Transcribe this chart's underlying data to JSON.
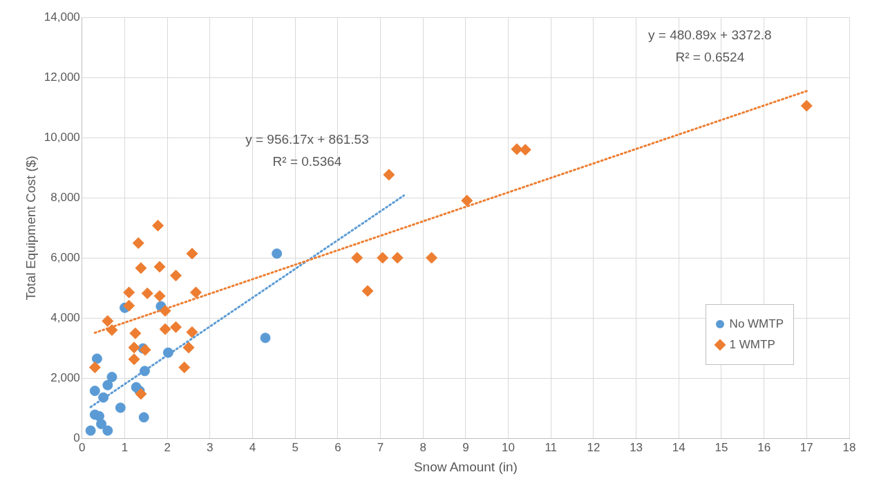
{
  "chart_data": {
    "type": "scatter",
    "xlabel": "Snow Amount (in)",
    "ylabel": "Total Equipment Cost ($)",
    "xlim": [
      0,
      18
    ],
    "xticks": [
      0,
      1,
      2,
      3,
      4,
      5,
      6,
      7,
      8,
      9,
      10,
      11,
      12,
      13,
      14,
      15,
      16,
      17,
      18
    ],
    "ylim": [
      0,
      14000
    ],
    "yticks": [
      {
        "value": 0,
        "label": "0"
      },
      {
        "value": 2000,
        "label": "2,000"
      },
      {
        "value": 4000,
        "label": "4,000"
      },
      {
        "value": 6000,
        "label": "6,000"
      },
      {
        "value": 8000,
        "label": "8,000"
      },
      {
        "value": 10000,
        "label": "10,000"
      },
      {
        "value": 12000,
        "label": "12,000"
      },
      {
        "value": 14000,
        "label": "14,000"
      }
    ],
    "grid": true,
    "legend": "right",
    "series": [
      {
        "name": "No WMTP",
        "color": "#5b9bd5",
        "marker": "circle",
        "x": [
          0.2,
          0.3,
          0.4,
          0.35,
          0.3,
          0.45,
          0.6,
          0.5,
          0.6,
          0.7,
          0.9,
          1.0,
          1.27,
          1.35,
          1.43,
          1.47,
          1.45,
          1.85,
          2.02,
          4.3,
          4.57
        ],
        "values": [
          270,
          800,
          750,
          2660,
          1590,
          490,
          270,
          1370,
          1780,
          2050,
          1030,
          4350,
          1710,
          1590,
          3000,
          2250,
          710,
          4400,
          2860,
          3350,
          6150
        ]
      },
      {
        "name": "1 WMTP",
        "color": "#ed7d31",
        "marker": "diamond",
        "x": [
          0.3,
          0.6,
          0.7,
          1.1,
          1.1,
          1.32,
          1.38,
          1.25,
          1.22,
          1.22,
          1.38,
          1.48,
          1.53,
          1.78,
          1.82,
          1.82,
          1.95,
          1.95,
          2.2,
          2.2,
          2.4,
          2.5,
          2.58,
          2.58,
          2.67,
          6.45,
          6.7,
          7.05,
          7.2,
          7.4,
          8.2,
          9.03,
          10.2,
          10.4,
          17.0
        ],
        "values": [
          2370,
          3910,
          3610,
          4860,
          4420,
          6500,
          5670,
          3500,
          3030,
          2640,
          1490,
          2950,
          4830,
          7080,
          5710,
          4740,
          4250,
          3640,
          5420,
          3710,
          2370,
          3030,
          3540,
          6150,
          4860,
          6010,
          4910,
          6010,
          8770,
          6010,
          6010,
          7910,
          9620,
          9600,
          11060
        ]
      },
      {
        "type": "line",
        "color": "#5b9bd5",
        "marker": "none",
        "line_style": "dotted",
        "x": [
          0.2,
          7.55
        ],
        "values": [
          1050,
          8080
        ]
      },
      {
        "type": "line",
        "color": "#ed7d31",
        "marker": "none",
        "line_style": "dotted",
        "x": [
          0.3,
          17.0
        ],
        "values": [
          3520,
          11550
        ]
      }
    ],
    "annotations": [
      "y = 956.17x + 861.53",
      "R² = 0.5364",
      "y = 480.89x + 3372.8",
      "R² = 0.6524"
    ]
  }
}
